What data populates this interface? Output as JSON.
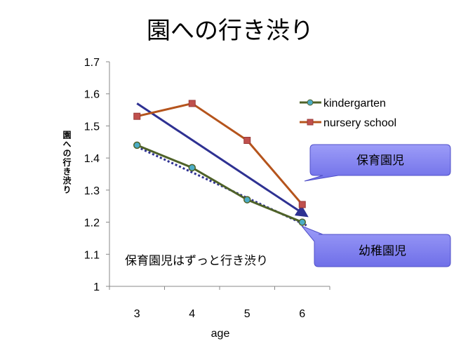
{
  "chart_data": {
    "type": "line",
    "title": "園への行き渋り",
    "xlabel": "age",
    "ylabel": "園への行き渋り",
    "categories": [
      "3",
      "4",
      "5",
      "6"
    ],
    "ylim": [
      1,
      1.7
    ],
    "yticks": [
      "1",
      "1.1",
      "1.2",
      "1.3",
      "1.4",
      "1.5",
      "1.6",
      "1.7"
    ],
    "series": [
      {
        "name": "kindergarten",
        "values": [
          1.44,
          1.37,
          1.27,
          1.2
        ],
        "color": "#4F6228",
        "marker": "circle",
        "marker_color": "#4BACC6"
      },
      {
        "name": "nursery school",
        "values": [
          1.53,
          1.57,
          1.455,
          1.255
        ],
        "color": "#C0504D",
        "marker": "square",
        "marker_color": "#C0504D"
      }
    ],
    "trendlines": [
      {
        "for": "nursery school",
        "style": "solid",
        "color": "#2E3192",
        "from": [
          3,
          1.57
        ],
        "to": [
          6,
          1.22
        ]
      },
      {
        "for": "kindergarten",
        "style": "dotted",
        "color": "#2E3192",
        "from": [
          3,
          1.435
        ],
        "to": [
          6,
          1.19
        ]
      }
    ],
    "legend_position": "top-right",
    "grid": false,
    "callouts": [
      {
        "text": "保育園児",
        "target": "nursery-trend",
        "color": "#8080F0"
      },
      {
        "text": "幼稚園児",
        "target": "kindergarten-trend",
        "color": "#8080F0"
      }
    ],
    "annotation": "保育園児はずっと行き渋り"
  }
}
